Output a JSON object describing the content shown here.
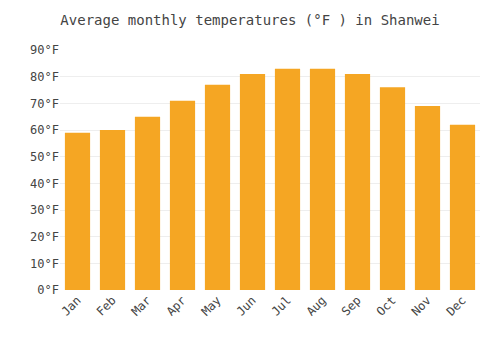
{
  "chart_data": {
    "type": "bar",
    "title": "Average monthly temperatures (°F ) in Shanwei",
    "categories": [
      "Jan",
      "Feb",
      "Mar",
      "Apr",
      "May",
      "Jun",
      "Jul",
      "Aug",
      "Sep",
      "Oct",
      "Nov",
      "Dec"
    ],
    "values": [
      59,
      60,
      65,
      71,
      77,
      81,
      83,
      83,
      81,
      76,
      69,
      62
    ],
    "color": "#F5A623",
    "ylim": [
      0,
      90
    ],
    "yticks": [
      {
        "value": 0,
        "label": "0°F"
      },
      {
        "value": 10,
        "label": "10°F"
      },
      {
        "value": 20,
        "label": "20°F"
      },
      {
        "value": 30,
        "label": "30°F"
      },
      {
        "value": 40,
        "label": "40°F"
      },
      {
        "value": 50,
        "label": "50°F"
      },
      {
        "value": 60,
        "label": "60°F"
      },
      {
        "value": 70,
        "label": "70°F"
      },
      {
        "value": 80,
        "label": "80°F"
      },
      {
        "value": 90,
        "label": "90°F"
      }
    ],
    "grid": true
  }
}
